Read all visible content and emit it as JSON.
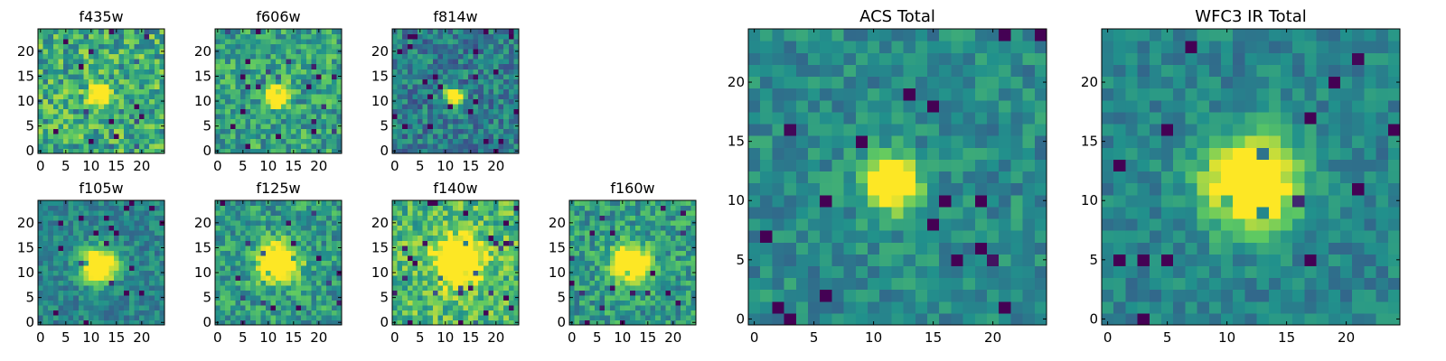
{
  "colormap": "viridis",
  "colors": [
    "#440154",
    "#3b528b",
    "#21918c",
    "#5ec962",
    "#fde725"
  ],
  "chart_data": [
    {
      "type": "heatmap",
      "title": "f435w",
      "grid": 25,
      "xticks": [
        0,
        5,
        10,
        15,
        20
      ],
      "yticks": [
        0,
        5,
        10,
        15,
        20
      ],
      "xlim": [
        -0.5,
        24.5
      ],
      "ylim": [
        -0.5,
        24.5
      ],
      "grid_lines": false,
      "source_peak": [
        11.5,
        11.5
      ],
      "source_width": 1.3,
      "background": 0.62,
      "noise": 0.26,
      "seed": 11
    },
    {
      "type": "heatmap",
      "title": "f606w",
      "grid": 25,
      "xticks": [
        0,
        5,
        10,
        15,
        20
      ],
      "yticks": [
        0,
        5,
        10,
        15,
        20
      ],
      "xlim": [
        -0.5,
        24.5
      ],
      "ylim": [
        -0.5,
        24.5
      ],
      "grid_lines": false,
      "source_peak": [
        11.5,
        11.5
      ],
      "source_width": 1.5,
      "background": 0.58,
      "noise": 0.22,
      "seed": 23
    },
    {
      "type": "heatmap",
      "title": "f814w",
      "grid": 25,
      "xticks": [
        0,
        5,
        10,
        15,
        20
      ],
      "yticks": [
        0,
        5,
        10,
        15,
        20
      ],
      "xlim": [
        -0.5,
        24.5
      ],
      "ylim": [
        -0.5,
        24.5
      ],
      "grid_lines": false,
      "source_peak": [
        11.5,
        11.0
      ],
      "source_width": 1.2,
      "background": 0.42,
      "noise": 0.2,
      "seed": 37
    },
    {
      "type": "heatmap",
      "title": "f105w",
      "grid": 25,
      "xticks": [
        0,
        5,
        10,
        15,
        20
      ],
      "yticks": [
        0,
        5,
        10,
        15,
        20
      ],
      "xlim": [
        -0.5,
        24.5
      ],
      "ylim": [
        -0.5,
        24.5
      ],
      "grid_lines": false,
      "source_peak": [
        11.5,
        11.5
      ],
      "source_width": 2.4,
      "background": 0.45,
      "noise": 0.14,
      "seed": 41
    },
    {
      "type": "heatmap",
      "title": "f125w",
      "grid": 25,
      "xticks": [
        0,
        5,
        10,
        15,
        20
      ],
      "yticks": [
        0,
        5,
        10,
        15,
        20
      ],
      "xlim": [
        -0.5,
        24.5
      ],
      "ylim": [
        -0.5,
        24.5
      ],
      "grid_lines": false,
      "source_peak": [
        12.0,
        12.0
      ],
      "source_width": 2.6,
      "background": 0.55,
      "noise": 0.2,
      "seed": 53
    },
    {
      "type": "heatmap",
      "title": "f140w",
      "grid": 25,
      "xticks": [
        0,
        5,
        10,
        15,
        20
      ],
      "yticks": [
        0,
        5,
        10,
        15,
        20
      ],
      "xlim": [
        -0.5,
        24.5
      ],
      "ylim": [
        -0.5,
        24.5
      ],
      "grid_lines": false,
      "source_peak": [
        12.5,
        12.5
      ],
      "source_width": 3.0,
      "background": 0.68,
      "noise": 0.22,
      "seed": 67
    },
    {
      "type": "heatmap",
      "title": "f160w",
      "grid": 25,
      "xticks": [
        0,
        5,
        10,
        15,
        20
      ],
      "yticks": [
        0,
        5,
        10,
        15,
        20
      ],
      "xlim": [
        -0.5,
        24.5
      ],
      "ylim": [
        -0.5,
        24.5
      ],
      "grid_lines": false,
      "source_peak": [
        11.5,
        12.0
      ],
      "source_width": 2.4,
      "background": 0.55,
      "noise": 0.2,
      "seed": 79
    },
    {
      "type": "heatmap",
      "title": "ACS Total",
      "grid": 25,
      "xticks": [
        0,
        5,
        10,
        15,
        20
      ],
      "yticks": [
        0,
        5,
        10,
        15,
        20
      ],
      "xlim": [
        -0.5,
        24.5
      ],
      "ylim": [
        -0.5,
        24.5
      ],
      "grid_lines": false,
      "source_peak": [
        11.5,
        11.5
      ],
      "source_width": 1.5,
      "background": 0.48,
      "noise": 0.14,
      "seed": 91
    },
    {
      "type": "heatmap",
      "title": "WFC3 IR Total",
      "grid": 25,
      "xticks": [
        0,
        5,
        10,
        15,
        20
      ],
      "yticks": [
        0,
        5,
        10,
        15,
        20
      ],
      "xlim": [
        -0.5,
        24.5
      ],
      "ylim": [
        -0.5,
        24.5
      ],
      "grid_lines": false,
      "source_peak": [
        12.0,
        11.5
      ],
      "source_width": 2.6,
      "background": 0.45,
      "noise": 0.12,
      "seed": 103
    }
  ]
}
